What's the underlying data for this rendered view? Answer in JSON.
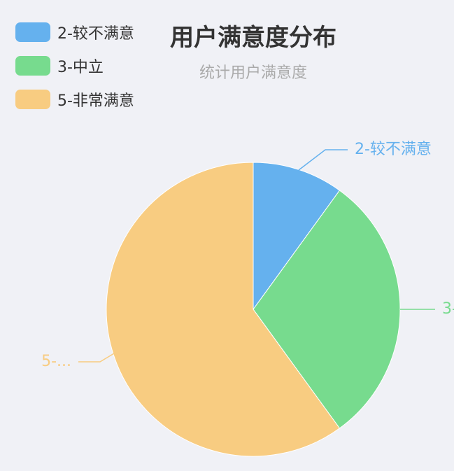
{
  "chart_data": {
    "type": "pie",
    "title": "用户满意度分布",
    "subtitle": "统计用户满意度",
    "legend_position": "top-left",
    "series": [
      {
        "name": "2-较不满意",
        "value": 10,
        "color": "#65b1ee",
        "label": "2-较不满意"
      },
      {
        "name": "3-中立",
        "value": 30,
        "color": "#77db8e",
        "label": "3-"
      },
      {
        "name": "5-非常满意",
        "value": 60,
        "color": "#f8cc81",
        "label": "5-..."
      }
    ]
  }
}
